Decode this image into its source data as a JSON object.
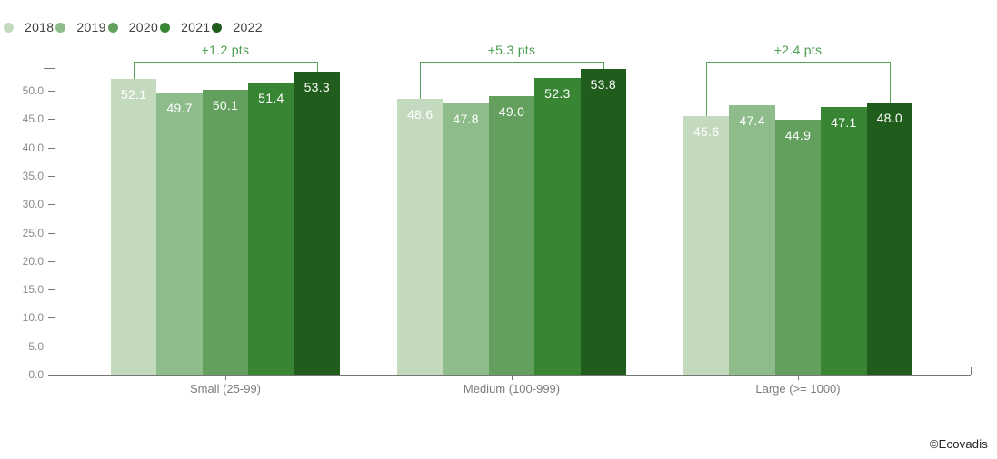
{
  "chart_data": {
    "type": "bar",
    "title": "",
    "categories": [
      "Small (25-99)",
      "Medium (100-999)",
      "Large (>= 1000)"
    ],
    "series": [
      {
        "name": "2018",
        "color": "#c4dabe",
        "values": [
          52.1,
          48.6,
          45.6
        ]
      },
      {
        "name": "2019",
        "color": "#8fbc8b",
        "values": [
          49.7,
          47.8,
          47.4
        ]
      },
      {
        "name": "2020",
        "color": "#63a05e",
        "values": [
          50.1,
          49.0,
          44.9
        ]
      },
      {
        "name": "2021",
        "color": "#388634",
        "values": [
          51.4,
          52.3,
          47.1
        ]
      },
      {
        "name": "2022",
        "color": "#205c1b",
        "values": [
          53.3,
          53.8,
          48.0
        ]
      }
    ],
    "annotations": [
      {
        "category": "Small (25-99)",
        "label": "+1.2 pts",
        "from_series": "2018",
        "to_series": "2022"
      },
      {
        "category": "Medium (100-999)",
        "label": "+5.3 pts",
        "from_series": "2018",
        "to_series": "2022"
      },
      {
        "category": "Large (>= 1000)",
        "label": "+2.4 pts",
        "from_series": "2018",
        "to_series": "2022"
      }
    ],
    "xlabel": "",
    "ylabel": "",
    "ylim": [
      0,
      50
    ],
    "ytick_step": 5,
    "yticks": [
      "0.0",
      "5.0",
      "10.0",
      "15.0",
      "20.0",
      "25.0",
      "30.0",
      "35.0",
      "40.0",
      "45.0",
      "50.0"
    ],
    "grid": false,
    "legend_position": "top-left",
    "value_labels": "inside-top"
  },
  "colors": {
    "background": "#ffffff",
    "axis": "#767676",
    "tick_label": "#8a8a8a",
    "category_label": "#7d7d7d",
    "value_label": "#ffffff",
    "annotation_text": "#4a9e4e",
    "annotation_line": "#55a155",
    "legend_text": "#3f3f3f",
    "credit_text": "#222222"
  },
  "footer": {
    "credit": "©Ecovadis"
  }
}
